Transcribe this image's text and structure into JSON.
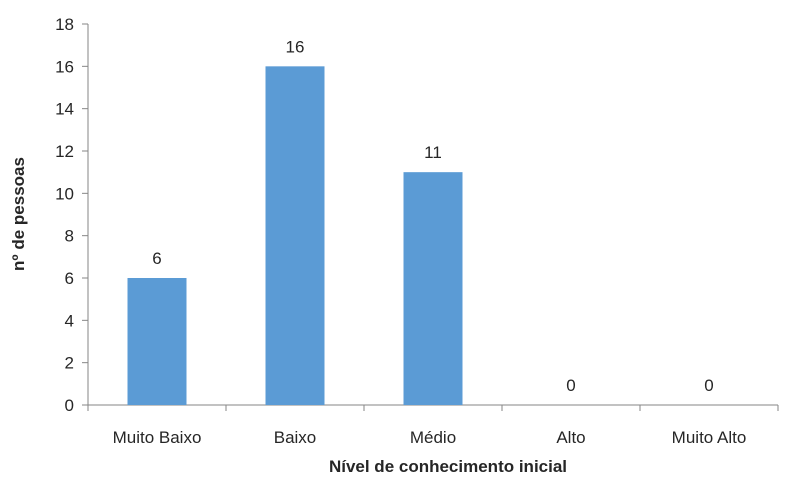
{
  "chart_data": {
    "type": "bar",
    "categories": [
      "Muito Baixo",
      "Baixo",
      "Médio",
      "Alto",
      "Muito Alto"
    ],
    "values": [
      6,
      16,
      11,
      0,
      0
    ],
    "data_labels": [
      "6",
      "16",
      "11",
      "0",
      "0"
    ],
    "xlabel": "Nível de conhecimento inicial",
    "ylabel": "nº de pessoas",
    "ylim": [
      0,
      18
    ],
    "yticks": [
      0,
      2,
      4,
      6,
      8,
      10,
      12,
      14,
      16,
      18
    ],
    "grid": false,
    "legend": "none",
    "bar_color": "#5B9BD5",
    "axis_color": "#868686"
  }
}
